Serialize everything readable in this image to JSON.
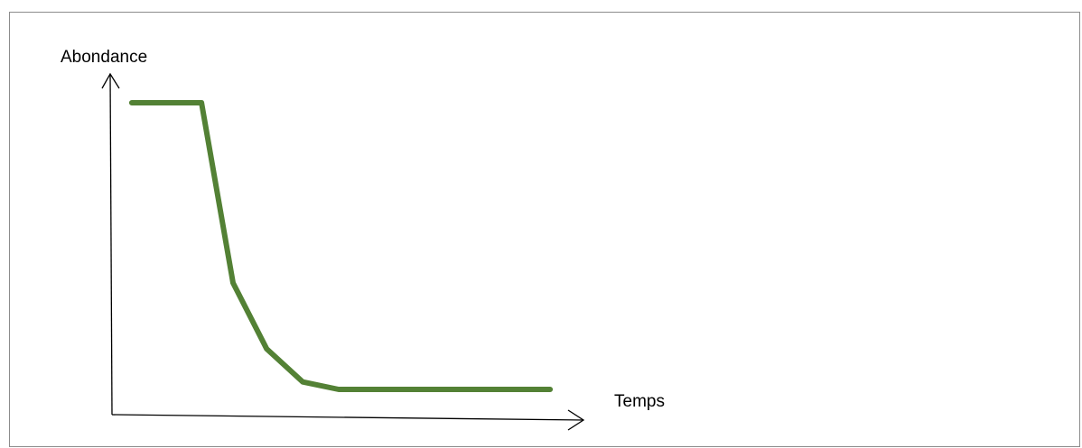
{
  "chart_data": {
    "type": "line",
    "title": "",
    "xlabel": "Temps",
    "ylabel": "Abondance",
    "ticks": "none",
    "grid": false,
    "legend": "none",
    "axes": "arrows",
    "xlim": [
      0,
      100
    ],
    "ylim": [
      0,
      100
    ],
    "series": [
      {
        "color": "#538135",
        "x": [
          4,
          19.5,
          26.5,
          34,
          42,
          50,
          97
        ],
        "y": [
          100,
          100,
          40,
          18,
          7,
          4.5,
          4.5
        ]
      }
    ]
  }
}
